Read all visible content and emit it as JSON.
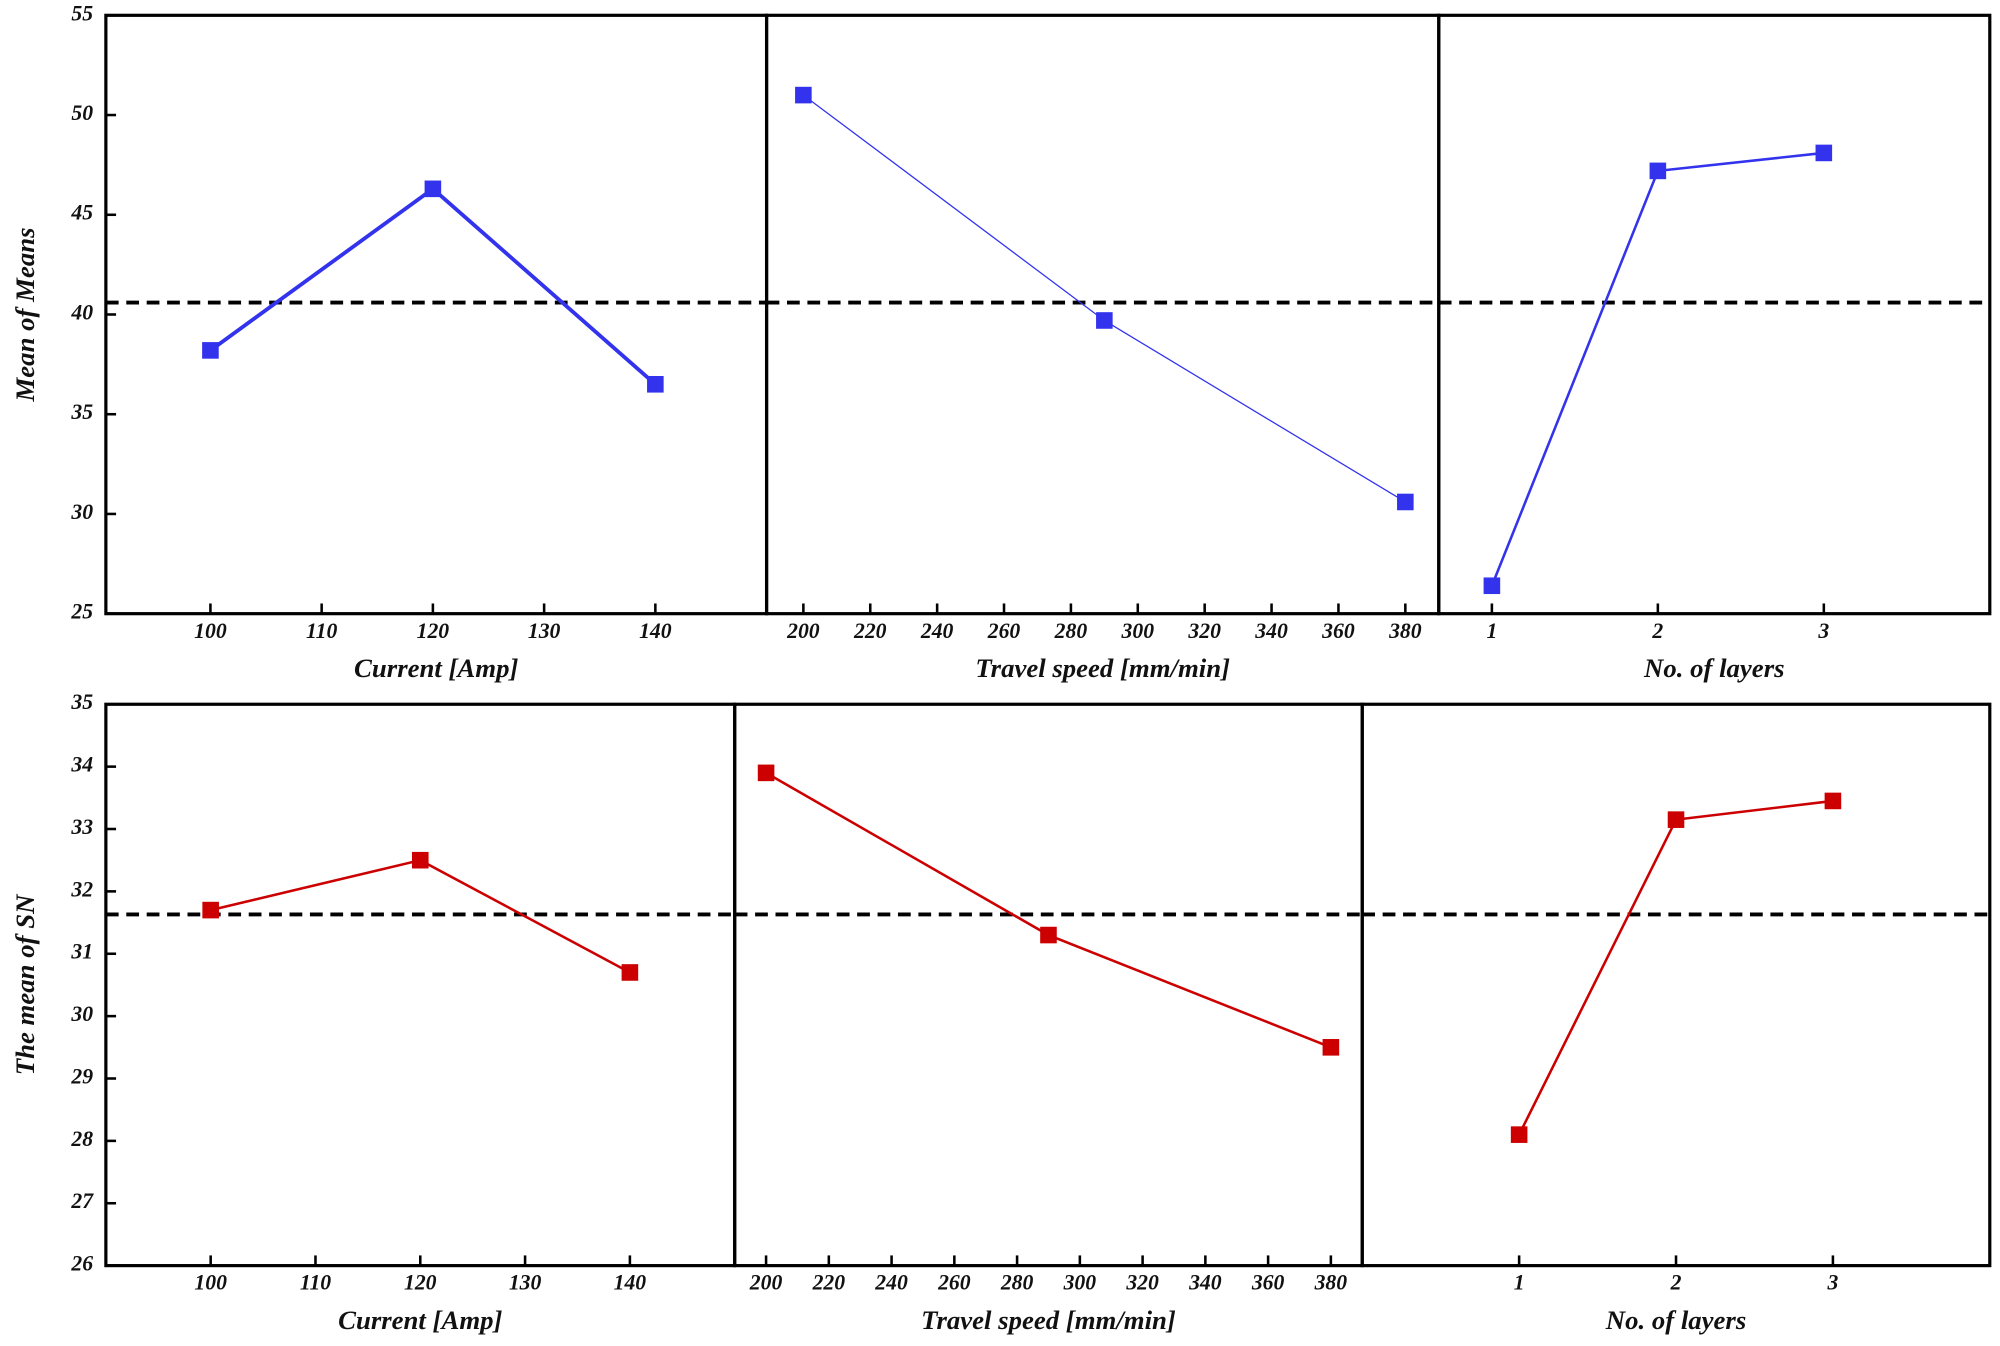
{
  "chart_data": [
    {
      "type": "line",
      "y_label": "Mean of Means",
      "x_label": "Current [Amp]",
      "x": [
        100,
        120,
        140
      ],
      "values": [
        38.2,
        46.3,
        36.5
      ],
      "color": "#3333ee",
      "xlim": [
        90.6,
        150
      ],
      "xticks": [
        100,
        110,
        120,
        130,
        140
      ],
      "ylim": [
        25,
        55
      ],
      "yticks": [
        25,
        30,
        35,
        40,
        45,
        50,
        55
      ],
      "reference_line": 40.6
    },
    {
      "type": "line",
      "x_label": "Travel speed [mm/min]",
      "x": [
        200,
        290,
        380
      ],
      "values": [
        51,
        39.7,
        30.6
      ],
      "color": "#3333ee",
      "xlim": [
        189,
        390
      ],
      "xticks": [
        200,
        220,
        240,
        260,
        280,
        300,
        320,
        340,
        360,
        380
      ],
      "ylim": [
        25,
        55
      ],
      "reference_line": 40.6
    },
    {
      "type": "line",
      "x_label": "No. of layers",
      "x": [
        1,
        2,
        3
      ],
      "values": [
        26.4,
        47.2,
        48.1
      ],
      "color": "#3333ee",
      "xlim": [
        0.68,
        4
      ],
      "xticks": [
        1,
        2,
        3
      ],
      "ylim": [
        25,
        55
      ],
      "reference_line": 40.6
    },
    {
      "type": "line",
      "y_label": "The mean of SN",
      "x_label": "Current [Amp]",
      "x": [
        100,
        120,
        140
      ],
      "values": [
        31.7,
        32.5,
        30.7
      ],
      "color": "#cc0000",
      "xlim": [
        90,
        150
      ],
      "xticks": [
        100,
        110,
        120,
        130,
        140
      ],
      "ylim": [
        26,
        35
      ],
      "yticks": [
        26,
        27,
        28,
        29,
        30,
        31,
        32,
        33,
        34,
        35
      ],
      "reference_line": 31.63
    },
    {
      "type": "line",
      "x_label": "Travel speed [mm/min]",
      "x": [
        200,
        290,
        380
      ],
      "values": [
        33.9,
        31.3,
        29.5
      ],
      "color": "#cc0000",
      "xlim": [
        190,
        390
      ],
      "xticks": [
        200,
        220,
        240,
        260,
        280,
        300,
        320,
        340,
        360,
        380
      ],
      "ylim": [
        26,
        35
      ],
      "reference_line": 31.63
    },
    {
      "type": "line",
      "x_label": "No. of layers",
      "x": [
        1,
        2,
        3
      ],
      "values": [
        28.1,
        33.15,
        33.45
      ],
      "color": "#cc0000",
      "xlim": [
        0,
        4
      ],
      "xticks": [
        1,
        2,
        3
      ],
      "ylim": [
        26,
        35
      ],
      "reference_line": 31.63
    }
  ]
}
